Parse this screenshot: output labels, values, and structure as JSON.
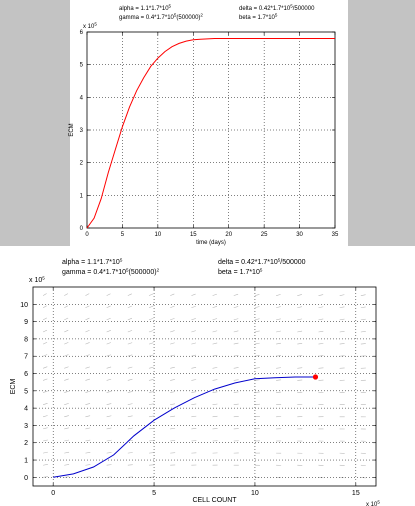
{
  "chart_data": [
    {
      "type": "line",
      "header": {
        "alpha": "alpha = 1.1*1.7*10",
        "alpha_exp": "5",
        "gamma": "gamma = 0.4*1.7*10",
        "gamma_exp": "5",
        "gamma_tail": "(500000)",
        "gamma_tail_exp": "2",
        "delta": "delta = 0.42*1.7*10",
        "delta_exp": "5",
        "delta_tail": "/500000",
        "beta": "beta = 1.7*10",
        "beta_exp": "5"
      },
      "xlabel": "time (days)",
      "ylabel": "ECM",
      "y_multiplier": "x 10",
      "y_multiplier_exp": "5",
      "xlim": [
        0,
        35
      ],
      "ylim": [
        0,
        6
      ],
      "xticks": [
        0,
        5,
        10,
        15,
        20,
        25,
        30,
        35
      ],
      "yticks": [
        0,
        1,
        2,
        3,
        4,
        5,
        6
      ],
      "grid": true,
      "line_color": "#ff0000",
      "series": [
        {
          "x": [
            0,
            1,
            2,
            3,
            4,
            5,
            6,
            7,
            8,
            9,
            10,
            11,
            12,
            13,
            14,
            15,
            16,
            17,
            18,
            20,
            22,
            25,
            30,
            35
          ],
          "y": [
            0.0,
            0.3,
            0.9,
            1.7,
            2.4,
            3.1,
            3.7,
            4.2,
            4.6,
            4.95,
            5.2,
            5.4,
            5.55,
            5.65,
            5.72,
            5.76,
            5.78,
            5.79,
            5.8,
            5.8,
            5.8,
            5.8,
            5.8,
            5.8
          ]
        }
      ]
    },
    {
      "type": "line",
      "header": {
        "alpha": "alpha = 1.1*1.7*10",
        "alpha_exp": "5",
        "gamma": "gamma = 0.4*1.7*10",
        "gamma_exp": "5",
        "gamma_tail": "(500000)",
        "gamma_tail_exp": "2",
        "delta": "delta = 0.42*1.7*10",
        "delta_exp": "5",
        "delta_tail": "/500000",
        "beta": "beta = 1.7*10",
        "beta_exp": "5"
      },
      "xlabel": "CELL COUNT",
      "ylabel": "ECM",
      "y_multiplier": "x 10",
      "y_multiplier_exp": "5",
      "x_multiplier": "x 10",
      "x_multiplier_exp": "5",
      "xlim": [
        -1,
        16
      ],
      "ylim": [
        -0.5,
        11
      ],
      "xticks": [
        0,
        5,
        10,
        15
      ],
      "yticks": [
        0,
        1,
        2,
        3,
        4,
        5,
        6,
        7,
        8,
        9,
        10
      ],
      "grid": true,
      "line_color": "#0000cc",
      "marker_color": "#ff0000",
      "series": [
        {
          "x": [
            0,
            1,
            2,
            3,
            4,
            5,
            6,
            7,
            8,
            9,
            10,
            11,
            12,
            13
          ],
          "y": [
            0.0,
            0.2,
            0.6,
            1.3,
            2.4,
            3.3,
            4.0,
            4.6,
            5.1,
            5.45,
            5.7,
            5.75,
            5.8,
            5.8
          ]
        }
      ],
      "end_marker": [
        13,
        5.8
      ],
      "vector_field": true
    }
  ]
}
